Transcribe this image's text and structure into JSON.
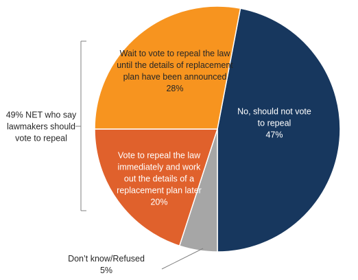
{
  "chart_data": {
    "type": "pie",
    "categories": [
      "No, should not vote to repeal",
      "Don’t know/Refused",
      "Vote to repeal the law immediately and work out the details of a replacement plan later",
      "Wait to vote to repeal the law until the details of replacement plan have been announced"
    ],
    "values": [
      47,
      5,
      20,
      28
    ],
    "value_labels": [
      "47%",
      "5%",
      "20%",
      "28%"
    ],
    "colors": [
      "#17375e",
      "#a6a6a6",
      "#e0612c",
      "#f7941f"
    ],
    "annotation": "49% NET who say lawmakers should vote to repeal"
  }
}
